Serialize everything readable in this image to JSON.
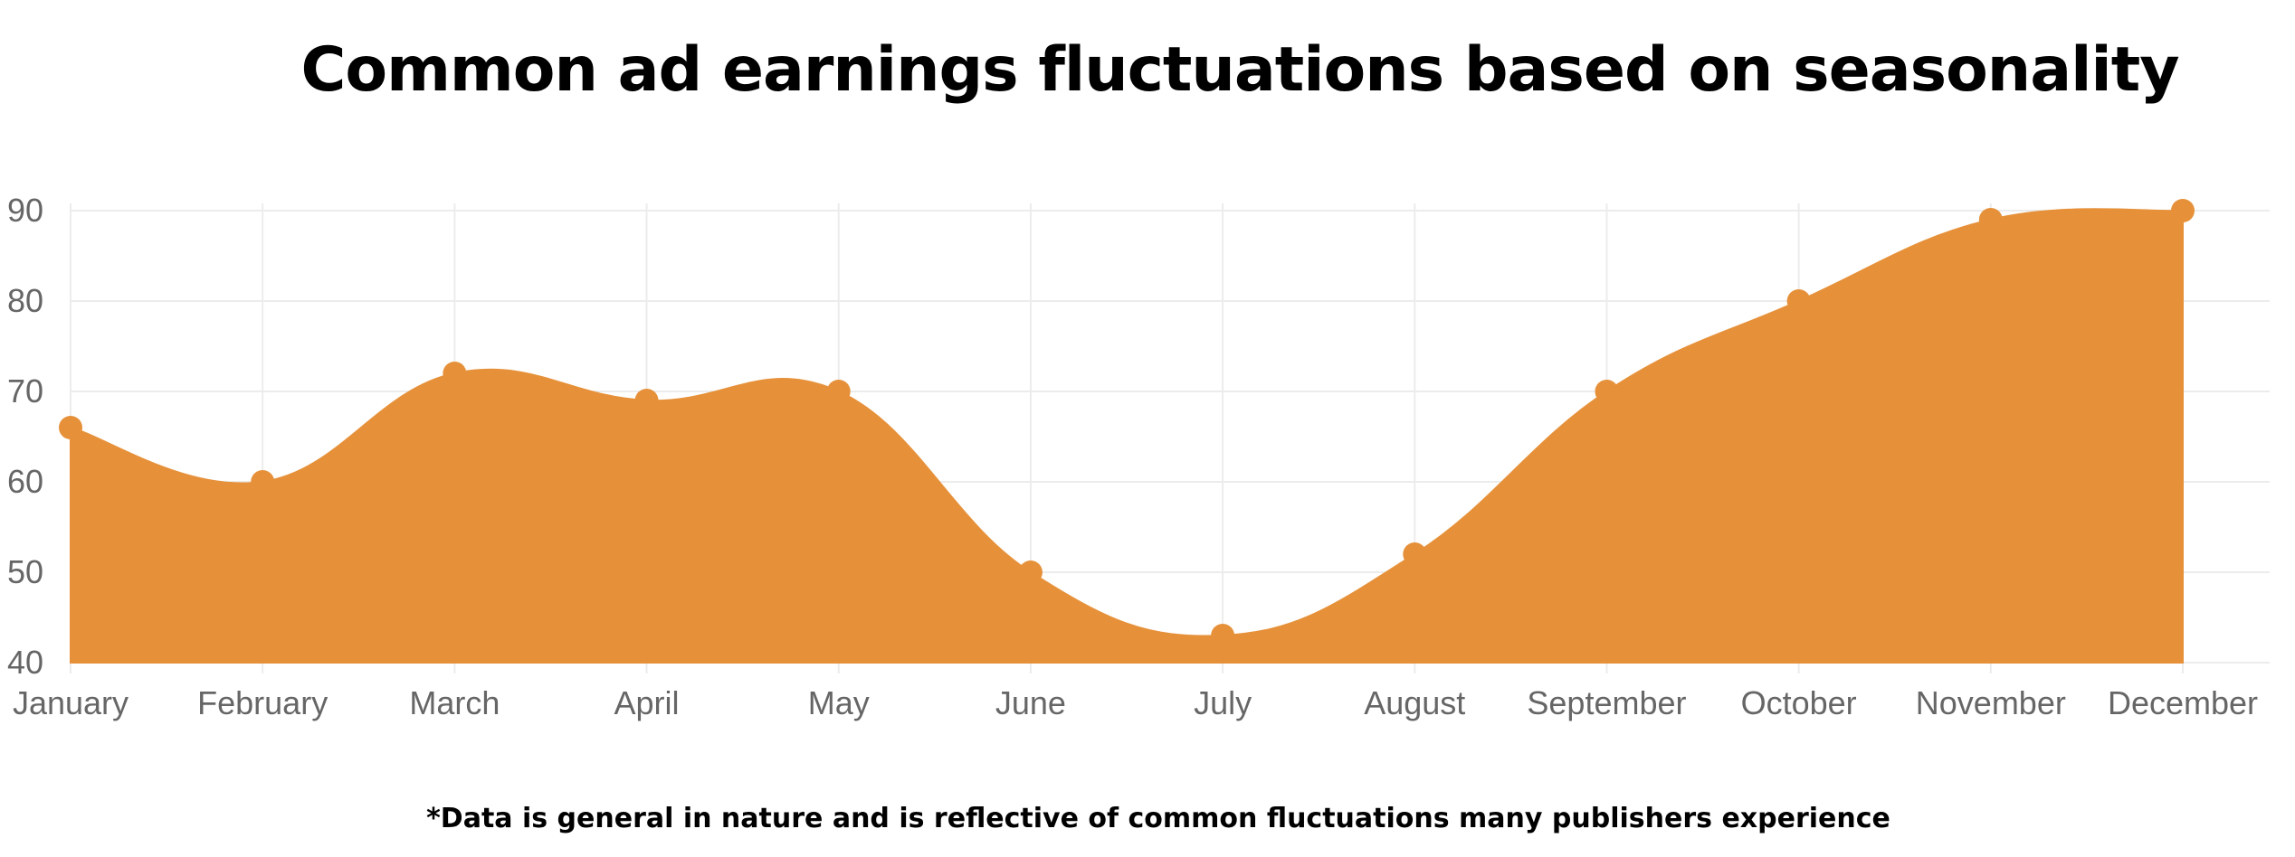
{
  "chart_data": {
    "type": "area",
    "title": "Common ad earnings fluctuations based on seasonality",
    "footnote": "*Data is general in nature and is reflective of common fluctuations many publishers experience",
    "xlabel": "",
    "ylabel": "",
    "categories": [
      "January",
      "February",
      "March",
      "April",
      "May",
      "June",
      "July",
      "August",
      "September",
      "October",
      "November",
      "December"
    ],
    "series": [
      {
        "values": [
          66,
          60,
          72,
          69,
          70,
          50,
          43,
          52,
          70,
          80,
          89,
          90
        ],
        "color": "#E6913A"
      }
    ],
    "ylim": [
      40,
      90
    ],
    "yticks": [
      40,
      50,
      60,
      70,
      80,
      90
    ],
    "grid": true,
    "smooth": true
  }
}
